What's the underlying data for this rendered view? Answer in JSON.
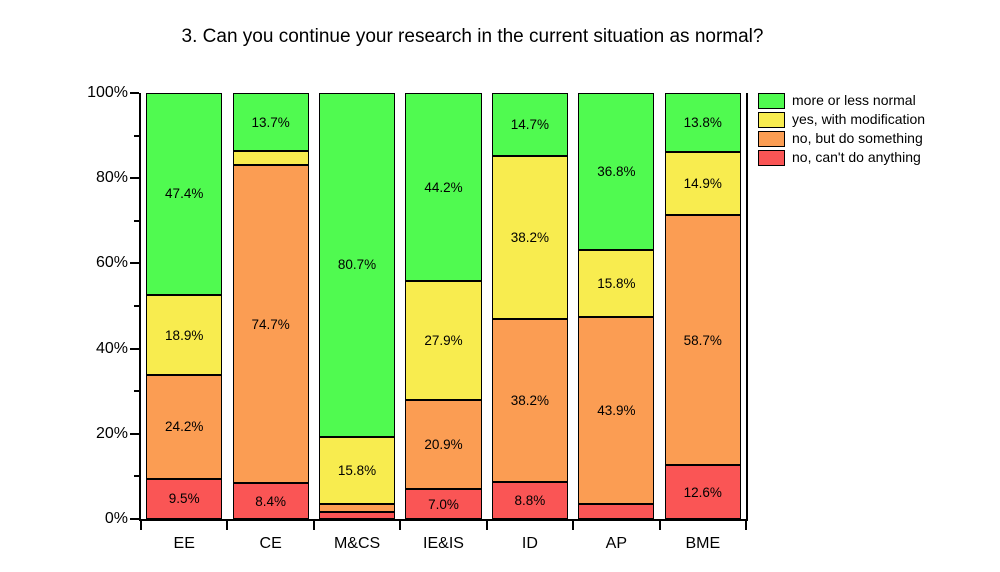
{
  "title": "3. Can you continue your research in the current situation as normal?",
  "chart_data": {
    "type": "bar",
    "stacked": true,
    "unit": "%",
    "title": "3. Can you continue your research in the current situation as normal?",
    "categories": [
      "EE",
      "CE",
      "M&CS",
      "IE&IS",
      "ID",
      "AP",
      "BME"
    ],
    "series": [
      {
        "key": "more-or-less-normal",
        "name": "more or less normal",
        "color": "#50FA50",
        "values": [
          47.4,
          13.7,
          80.7,
          44.2,
          14.7,
          36.8,
          13.8
        ],
        "labels": [
          "47.4%",
          "13.7%",
          "80.7%",
          "44.2%",
          "14.7%",
          "36.8%",
          "13.8%"
        ]
      },
      {
        "key": "yes-with-modification",
        "name": "yes, with modification",
        "color": "#F8EC4F",
        "values": [
          18.9,
          3.2,
          15.8,
          27.9,
          38.2,
          15.8,
          14.9
        ],
        "labels": [
          "18.9%",
          null,
          "15.8%",
          "27.9%",
          "38.2%",
          "15.8%",
          "14.9%"
        ]
      },
      {
        "key": "no-but-do-something",
        "name": "no, but do something",
        "color": "#FB9D53",
        "values": [
          24.2,
          74.7,
          1.8,
          20.9,
          38.2,
          43.9,
          58.7
        ],
        "labels": [
          "24.2%",
          "74.7%",
          null,
          "20.9%",
          "38.2%",
          "43.9%",
          "58.7%"
        ]
      },
      {
        "key": "no-cant-do-anything",
        "name": "no, can't do anything",
        "color": "#FA5555",
        "values": [
          9.5,
          8.4,
          1.7,
          7.0,
          8.8,
          3.5,
          12.6
        ],
        "labels": [
          "9.5%",
          "8.4%",
          null,
          "7.0%",
          "8.8%",
          null,
          "12.6%"
        ]
      }
    ],
    "ylim": [
      0,
      100
    ],
    "yticks": [
      [
        0,
        "0%"
      ],
      [
        20,
        "20%"
      ],
      [
        40,
        "40%"
      ],
      [
        60,
        "60%"
      ],
      [
        80,
        "80%"
      ],
      [
        100,
        "100%"
      ]
    ],
    "yticks_minor": [
      10,
      30,
      50,
      70,
      90
    ],
    "legend_position": "top-right",
    "grid": false,
    "axis_color": "#000000",
    "bar_fill_of_cell": 0.88
  }
}
